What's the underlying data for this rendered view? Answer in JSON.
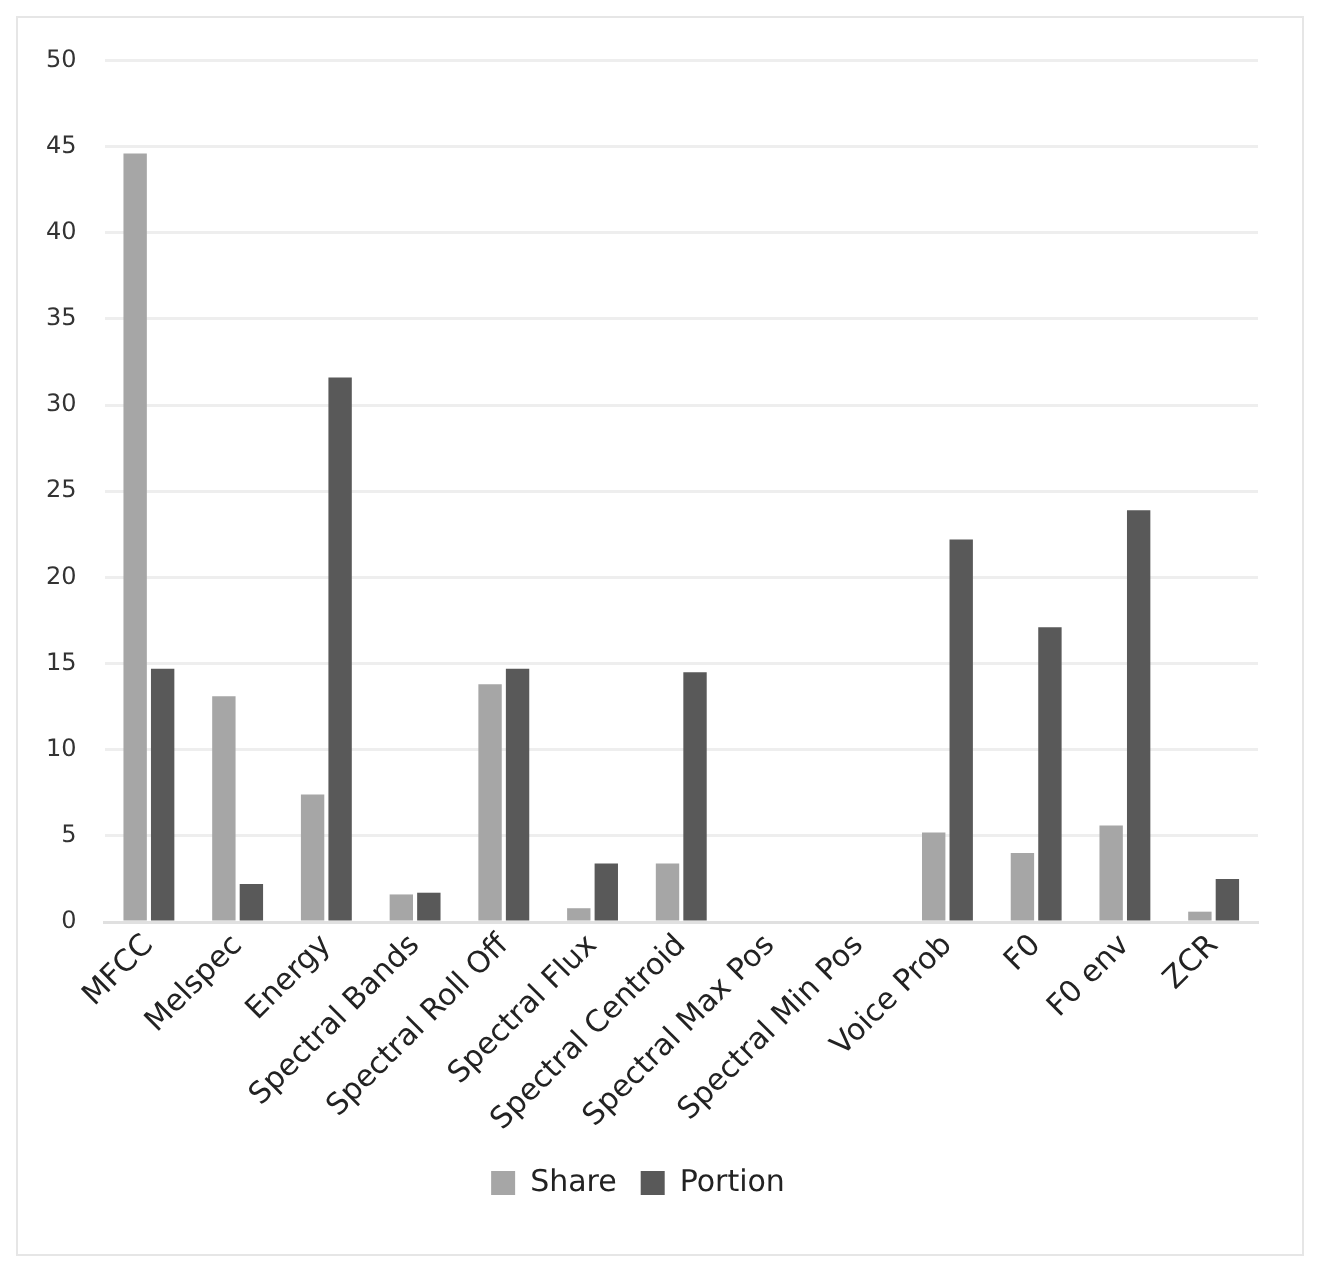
{
  "chart_data": {
    "type": "bar",
    "categories": [
      "MFCC",
      "Melspec",
      "Energy",
      "Spectral Bands",
      "Spectral Roll Off",
      "Spectral Flux",
      "Spectral Centroid",
      "Spectral Max Pos",
      "Spectral Min Pos",
      "Voice Prob",
      "F0",
      "F0 env",
      "ZCR"
    ],
    "series": [
      {
        "name": "Share",
        "color": "#a6a6a6",
        "values": [
          44.6,
          13.1,
          7.4,
          1.6,
          13.8,
          0.8,
          3.4,
          0,
          0,
          5.2,
          4.0,
          5.6,
          0.6
        ]
      },
      {
        "name": "Portion",
        "color": "#595959",
        "values": [
          14.7,
          2.2,
          31.6,
          1.7,
          14.7,
          3.4,
          14.5,
          0,
          0,
          22.2,
          17.1,
          23.9,
          2.5
        ]
      }
    ],
    "ylim": [
      0,
      50
    ],
    "yticks": [
      0,
      5,
      10,
      15,
      20,
      25,
      30,
      35,
      40,
      45,
      50
    ],
    "grid": "y",
    "legend": "bottom"
  }
}
